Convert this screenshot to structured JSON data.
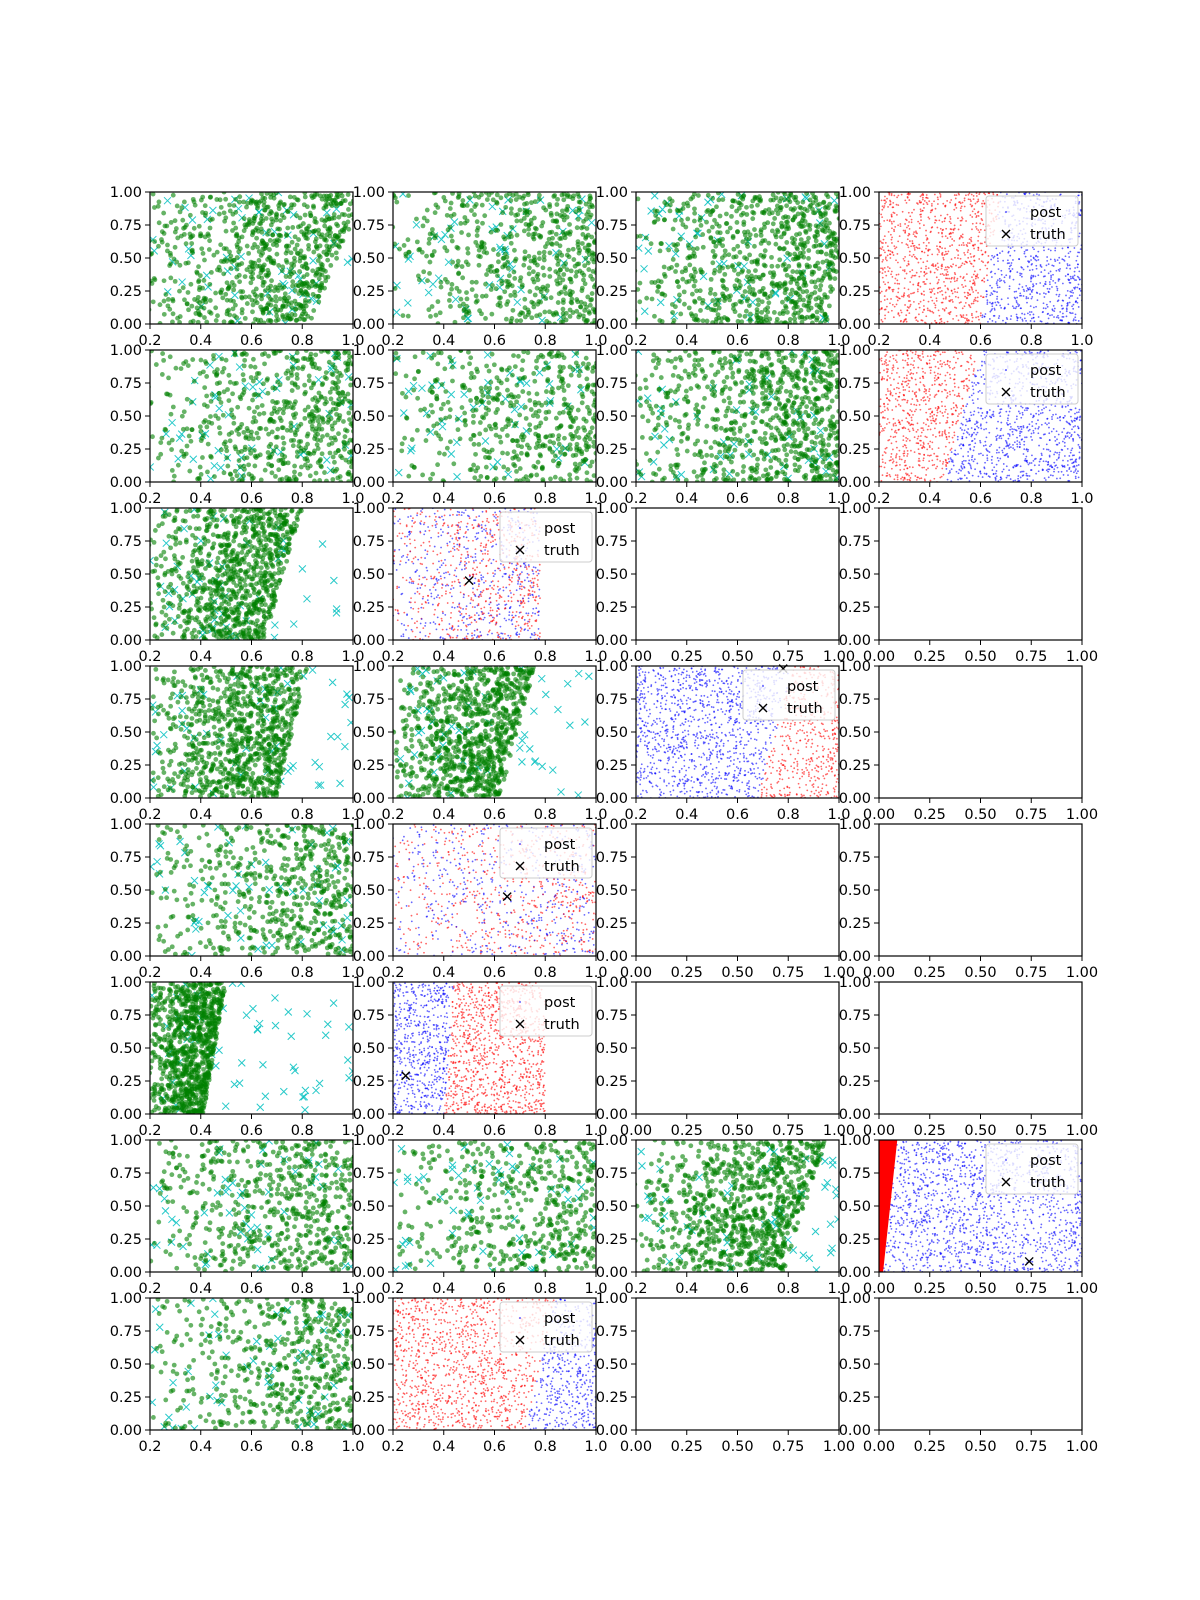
{
  "figure": {
    "rows": 8,
    "cols": 4,
    "colors": {
      "train_dot": "#008000",
      "train_cross": "#00bfbf",
      "post_red": "#ff0000",
      "post_blue": "#0000ff",
      "truth": "#000000",
      "axes": "#000000"
    }
  },
  "legend_labels": {
    "post": "post",
    "truth": "truth"
  },
  "chart_data": [
    {
      "row": 0,
      "col": 0,
      "type": "scatter",
      "kind": "data",
      "xlim": [
        0.2,
        1.0
      ],
      "ylim": [
        0,
        1
      ],
      "xticks": [
        "0.2",
        "0.4",
        "0.6",
        "0.8",
        "1.0"
      ],
      "yticks": [
        "0.00",
        "0.25",
        "0.50",
        "0.75",
        "1.00"
      ],
      "boundary": {
        "x_at_y0": 0.83,
        "x_at_y1": 1.05
      },
      "green_side": "left",
      "density": 0.9
    },
    {
      "row": 0,
      "col": 1,
      "type": "scatter",
      "kind": "data",
      "xlim": [
        0.2,
        1.0
      ],
      "ylim": [
        0,
        1
      ],
      "xticks": [
        "0.2",
        "0.4",
        "0.6",
        "0.8",
        "1.0"
      ],
      "yticks": [
        "0.00",
        "0.25",
        "0.50",
        "0.75",
        "1.00"
      ],
      "boundary": {
        "x_at_y0": 1.2,
        "x_at_y1": 1.2
      },
      "green_side": "left",
      "density": 1.0
    },
    {
      "row": 0,
      "col": 2,
      "type": "scatter",
      "kind": "data",
      "xlim": [
        0.2,
        1.0
      ],
      "ylim": [
        0,
        1
      ],
      "xticks": [
        "0.2",
        "0.4",
        "0.6",
        "0.8",
        "1.0"
      ],
      "yticks": [
        "0.00",
        "0.25",
        "0.50",
        "0.75",
        "1.00"
      ],
      "boundary": {
        "x_at_y0": 0.95,
        "x_at_y1": 1.05
      },
      "green_side": "left",
      "density": 0.9
    },
    {
      "row": 0,
      "col": 3,
      "type": "scatter",
      "kind": "posterior",
      "xlim": [
        0.2,
        1.0
      ],
      "ylim": [
        0,
        1
      ],
      "xticks": [
        "0.2",
        "0.4",
        "0.6",
        "0.8",
        "1.0"
      ],
      "yticks": [
        "0.00",
        "0.25",
        "0.50",
        "0.75",
        "1.00"
      ],
      "legend": true,
      "boundary": {
        "x_at_y0": 0.6,
        "x_at_y1": 0.68
      },
      "red_side": "left",
      "region": {
        "x_min": 0.2,
        "x_max": 1.0
      },
      "truth": null
    },
    {
      "row": 1,
      "col": 0,
      "type": "scatter",
      "kind": "data",
      "xlim": [
        0.2,
        1.0
      ],
      "ylim": [
        0,
        1
      ],
      "xticks": [
        "0.2",
        "0.4",
        "0.6",
        "0.8",
        "1.0"
      ],
      "yticks": [
        "0.00",
        "0.25",
        "0.50",
        "0.75",
        "1.00"
      ],
      "boundary": {
        "x_at_y0": 1.2,
        "x_at_y1": 1.2
      },
      "green_side": "left",
      "density": 1.0
    },
    {
      "row": 1,
      "col": 1,
      "type": "scatter",
      "kind": "data",
      "xlim": [
        0.2,
        1.0
      ],
      "ylim": [
        0,
        1
      ],
      "xticks": [
        "0.2",
        "0.4",
        "0.6",
        "0.8",
        "1.0"
      ],
      "yticks": [
        "0.00",
        "0.25",
        "0.50",
        "0.75",
        "1.00"
      ],
      "boundary": {
        "x_at_y0": 1.2,
        "x_at_y1": 1.2
      },
      "green_side": "left",
      "density": 0.8
    },
    {
      "row": 1,
      "col": 2,
      "type": "scatter",
      "kind": "data",
      "xlim": [
        0.2,
        1.0
      ],
      "ylim": [
        0,
        1
      ],
      "xticks": [
        "0.2",
        "0.4",
        "0.6",
        "0.8",
        "1.0"
      ],
      "yticks": [
        "0.00",
        "0.25",
        "0.50",
        "0.75",
        "1.00"
      ],
      "boundary": {
        "x_at_y0": 1.0,
        "x_at_y1": 1.0
      },
      "green_side": "left",
      "density": 0.9
    },
    {
      "row": 1,
      "col": 3,
      "type": "scatter",
      "kind": "posterior",
      "xlim": [
        0.2,
        1.0
      ],
      "ylim": [
        0,
        1
      ],
      "xticks": [
        "0.2",
        "0.4",
        "0.6",
        "0.8",
        "1.0"
      ],
      "yticks": [
        "0.00",
        "0.25",
        "0.50",
        "0.75",
        "1.00"
      ],
      "legend": true,
      "boundary": {
        "x_at_y0": 0.45,
        "x_at_y1": 0.6
      },
      "red_side": "left",
      "region": {
        "x_min": 0.2,
        "x_max": 1.0
      },
      "truth": null
    },
    {
      "row": 2,
      "col": 0,
      "type": "scatter",
      "kind": "data",
      "xlim": [
        0.2,
        1.0
      ],
      "ylim": [
        0,
        1
      ],
      "xticks": [
        "0.2",
        "0.4",
        "0.6",
        "0.8",
        "1.0"
      ],
      "yticks": [
        "0.00",
        "0.25",
        "0.50",
        "0.75",
        "1.00"
      ],
      "boundary": {
        "x_at_y0": 0.65,
        "x_at_y1": 0.8
      },
      "green_side": "left",
      "density": 1.0
    },
    {
      "row": 2,
      "col": 1,
      "type": "scatter",
      "kind": "posterior",
      "xlim": [
        0.2,
        1.0
      ],
      "ylim": [
        0,
        1
      ],
      "xticks": [
        "0.2",
        "0.4",
        "0.6",
        "0.8",
        "1.0"
      ],
      "yticks": [
        "0.00",
        "0.25",
        "0.50",
        "0.75",
        "1.00"
      ],
      "legend": true,
      "boundary": {
        "x_at_y0": 0.72,
        "x_at_y1": 0.78
      },
      "red_side": "mixed",
      "region": {
        "x_min": 0.2,
        "x_max": 0.78
      },
      "truth": [
        0.5,
        0.45
      ]
    },
    {
      "row": 2,
      "col": 2,
      "type": "empty",
      "xlim": [
        0,
        1
      ],
      "ylim": [
        0,
        1
      ],
      "xticks": [
        "0.00",
        "0.25",
        "0.50",
        "0.75",
        "1.00"
      ],
      "yticks": [
        "0.00",
        "0.25",
        "0.50",
        "0.75",
        "1.00"
      ]
    },
    {
      "row": 2,
      "col": 3,
      "type": "empty",
      "xlim": [
        0,
        1
      ],
      "ylim": [
        0,
        1
      ],
      "xticks": [
        "0.00",
        "0.25",
        "0.50",
        "0.75",
        "1.00"
      ],
      "yticks": [
        "0.00",
        "0.25",
        "0.50",
        "0.75",
        "1.00"
      ]
    },
    {
      "row": 3,
      "col": 0,
      "type": "scatter",
      "kind": "data",
      "xlim": [
        0.2,
        1.0
      ],
      "ylim": [
        0,
        1
      ],
      "xticks": [
        "0.2",
        "0.4",
        "0.6",
        "0.8",
        "1.0"
      ],
      "yticks": [
        "0.00",
        "0.25",
        "0.50",
        "0.75",
        "1.00"
      ],
      "boundary": {
        "x_at_y0": 0.7,
        "x_at_y1": 0.82
      },
      "green_side": "left",
      "density": 1.0
    },
    {
      "row": 3,
      "col": 1,
      "type": "scatter",
      "kind": "data",
      "xlim": [
        0.2,
        1.0
      ],
      "ylim": [
        0,
        1
      ],
      "xticks": [
        "0.2",
        "0.4",
        "0.6",
        "0.8",
        "1.0"
      ],
      "yticks": [
        "0.00",
        "0.25",
        "0.50",
        "0.75",
        "1.00"
      ],
      "boundary": {
        "x_at_y0": 0.62,
        "x_at_y1": 0.76
      },
      "green_side": "left",
      "density": 1.0
    },
    {
      "row": 3,
      "col": 2,
      "type": "scatter",
      "kind": "posterior",
      "xlim": [
        0.2,
        1.0
      ],
      "ylim": [
        0,
        1
      ],
      "xticks": [
        "0.2",
        "0.4",
        "0.6",
        "0.8",
        "1.0"
      ],
      "yticks": [
        "0.00",
        "0.25",
        "0.50",
        "0.75",
        "1.00"
      ],
      "legend": true,
      "boundary": {
        "x_at_y0": 0.68,
        "x_at_y1": 0.82
      },
      "red_side": "right",
      "region": {
        "x_min": 0.2,
        "x_max": 1.0
      },
      "truth": [
        0.78,
        0.98
      ]
    },
    {
      "row": 3,
      "col": 3,
      "type": "empty",
      "xlim": [
        0,
        1
      ],
      "ylim": [
        0,
        1
      ],
      "xticks": [
        "0.00",
        "0.25",
        "0.50",
        "0.75",
        "1.00"
      ],
      "yticks": [
        "0.00",
        "0.25",
        "0.50",
        "0.75",
        "1.00"
      ]
    },
    {
      "row": 4,
      "col": 0,
      "type": "scatter",
      "kind": "data",
      "xlim": [
        0.2,
        1.0
      ],
      "ylim": [
        0,
        1
      ],
      "xticks": [
        "0.2",
        "0.4",
        "0.6",
        "0.8",
        "1.0"
      ],
      "yticks": [
        "0.00",
        "0.25",
        "0.50",
        "0.75",
        "1.00"
      ],
      "boundary": {
        "x_at_y0": 1.2,
        "x_at_y1": 1.2
      },
      "green_side": "left",
      "density": 0.95
    },
    {
      "row": 4,
      "col": 1,
      "type": "scatter",
      "kind": "posterior",
      "xlim": [
        0.2,
        1.0
      ],
      "ylim": [
        0,
        1
      ],
      "xticks": [
        "0.2",
        "0.4",
        "0.6",
        "0.8",
        "1.0"
      ],
      "yticks": [
        "0.00",
        "0.25",
        "0.50",
        "0.75",
        "1.00"
      ],
      "legend": true,
      "boundary": {
        "x_at_y0": 0.72,
        "x_at_y1": 0.78
      },
      "red_side": "mixed",
      "region": {
        "x_min": 0.2,
        "x_max": 1.0
      },
      "truth": [
        0.65,
        0.45
      ]
    },
    {
      "row": 4,
      "col": 2,
      "type": "empty",
      "xlim": [
        0,
        1
      ],
      "ylim": [
        0,
        1
      ],
      "xticks": [
        "0.00",
        "0.25",
        "0.50",
        "0.75",
        "1.00"
      ],
      "yticks": [
        "0.00",
        "0.25",
        "0.50",
        "0.75",
        "1.00"
      ]
    },
    {
      "row": 4,
      "col": 3,
      "type": "empty",
      "xlim": [
        0,
        1
      ],
      "ylim": [
        0,
        1
      ],
      "xticks": [
        "0.00",
        "0.25",
        "0.50",
        "0.75",
        "1.00"
      ],
      "yticks": [
        "0.00",
        "0.25",
        "0.50",
        "0.75",
        "1.00"
      ]
    },
    {
      "row": 5,
      "col": 0,
      "type": "scatter",
      "kind": "data",
      "xlim": [
        0.2,
        1.0
      ],
      "ylim": [
        0,
        1
      ],
      "xticks": [
        "0.2",
        "0.4",
        "0.6",
        "0.8",
        "1.0"
      ],
      "yticks": [
        "0.00",
        "0.25",
        "0.50",
        "0.75",
        "1.00"
      ],
      "boundary": {
        "x_at_y0": 0.41,
        "x_at_y1": 0.5
      },
      "green_side": "left",
      "density": 1.0
    },
    {
      "row": 5,
      "col": 1,
      "type": "scatter",
      "kind": "posterior",
      "xlim": [
        0.2,
        1.0
      ],
      "ylim": [
        0,
        1
      ],
      "xticks": [
        "0.2",
        "0.4",
        "0.6",
        "0.8",
        "1.0"
      ],
      "yticks": [
        "0.00",
        "0.25",
        "0.50",
        "0.75",
        "1.00"
      ],
      "legend": true,
      "boundary": {
        "x_at_y0": 0.4,
        "x_at_y1": 0.44
      },
      "red_side": "right",
      "region": {
        "x_min": 0.2,
        "x_max": 0.8
      },
      "truth": [
        0.25,
        0.29
      ]
    },
    {
      "row": 5,
      "col": 2,
      "type": "empty",
      "xlim": [
        0,
        1
      ],
      "ylim": [
        0,
        1
      ],
      "xticks": [
        "0.00",
        "0.25",
        "0.50",
        "0.75",
        "1.00"
      ],
      "yticks": [
        "0.00",
        "0.25",
        "0.50",
        "0.75",
        "1.00"
      ]
    },
    {
      "row": 5,
      "col": 3,
      "type": "empty",
      "xlim": [
        0,
        1
      ],
      "ylim": [
        0,
        1
      ],
      "xticks": [
        "0.00",
        "0.25",
        "0.50",
        "0.75",
        "1.00"
      ],
      "yticks": [
        "0.00",
        "0.25",
        "0.50",
        "0.75",
        "1.00"
      ]
    },
    {
      "row": 6,
      "col": 0,
      "type": "scatter",
      "kind": "data",
      "xlim": [
        0.2,
        1.0
      ],
      "ylim": [
        0,
        1
      ],
      "xticks": [
        "0.2",
        "0.4",
        "0.6",
        "0.8",
        "1.0"
      ],
      "yticks": [
        "0.00",
        "0.25",
        "0.50",
        "0.75",
        "1.00"
      ],
      "boundary": {
        "x_at_y0": 1.2,
        "x_at_y1": 1.2
      },
      "green_side": "left",
      "density": 0.95
    },
    {
      "row": 6,
      "col": 1,
      "type": "scatter",
      "kind": "data",
      "xlim": [
        0.2,
        1.0
      ],
      "ylim": [
        0,
        1
      ],
      "xticks": [
        "0.2",
        "0.4",
        "0.6",
        "0.8",
        "1.0"
      ],
      "yticks": [
        "0.00",
        "0.25",
        "0.50",
        "0.75",
        "1.00"
      ],
      "boundary": {
        "x_at_y0": 1.2,
        "x_at_y1": 1.2
      },
      "green_side": "left",
      "density": 0.8
    },
    {
      "row": 6,
      "col": 2,
      "type": "scatter",
      "kind": "data",
      "xlim": [
        0.2,
        1.0
      ],
      "ylim": [
        0,
        1
      ],
      "xticks": [
        "0.2",
        "0.4",
        "0.6",
        "0.8",
        "1.0"
      ],
      "yticks": [
        "0.00",
        "0.25",
        "0.50",
        "0.75",
        "1.00"
      ],
      "boundary": {
        "x_at_y0": 0.78,
        "x_at_y1": 0.95
      },
      "green_side": "left",
      "density": 1.0
    },
    {
      "row": 6,
      "col": 3,
      "type": "scatter",
      "kind": "posterior",
      "xlim": [
        0,
        1
      ],
      "ylim": [
        0,
        1
      ],
      "xticks": [
        "0.00",
        "0.25",
        "0.50",
        "0.75",
        "1.00"
      ],
      "yticks": [
        "0.00",
        "0.25",
        "0.50",
        "0.75",
        "1.00"
      ],
      "legend": true,
      "boundary": {
        "x_at_y0": 0.02,
        "x_at_y1": 0.09
      },
      "red_side": "left",
      "region": {
        "x_min": 0.0,
        "x_max": 1.0
      },
      "truth": [
        0.74,
        0.08
      ]
    },
    {
      "row": 7,
      "col": 0,
      "type": "scatter",
      "kind": "data",
      "xlim": [
        0.2,
        1.0
      ],
      "ylim": [
        0,
        1
      ],
      "xticks": [
        "0.2",
        "0.4",
        "0.6",
        "0.8",
        "1.0"
      ],
      "yticks": [
        "0.00",
        "0.25",
        "0.50",
        "0.75",
        "1.00"
      ],
      "boundary": {
        "x_at_y0": 1.2,
        "x_at_y1": 1.2
      },
      "green_side": "left",
      "density": 0.9
    },
    {
      "row": 7,
      "col": 1,
      "type": "scatter",
      "kind": "posterior",
      "xlim": [
        0.2,
        1.0
      ],
      "ylim": [
        0,
        1
      ],
      "xticks": [
        "0.2",
        "0.4",
        "0.6",
        "0.8",
        "1.0"
      ],
      "yticks": [
        "0.00",
        "0.25",
        "0.50",
        "0.75",
        "1.00"
      ],
      "legend": true,
      "boundary": {
        "x_at_y0": 0.72,
        "x_at_y1": 0.84
      },
      "red_side": "left",
      "region": {
        "x_min": 0.2,
        "x_max": 1.0
      },
      "truth": null
    },
    {
      "row": 7,
      "col": 2,
      "type": "empty",
      "xlim": [
        0,
        1
      ],
      "ylim": [
        0,
        1
      ],
      "xticks": [
        "0.00",
        "0.25",
        "0.50",
        "0.75",
        "1.00"
      ],
      "yticks": [
        "0.00",
        "0.25",
        "0.50",
        "0.75",
        "1.00"
      ]
    },
    {
      "row": 7,
      "col": 3,
      "type": "empty",
      "xlim": [
        0,
        1
      ],
      "ylim": [
        0,
        1
      ],
      "xticks": [
        "0.00",
        "0.25",
        "0.50",
        "0.75",
        "1.00"
      ],
      "yticks": [
        "0.00",
        "0.25",
        "0.50",
        "0.75",
        "1.00"
      ]
    }
  ]
}
